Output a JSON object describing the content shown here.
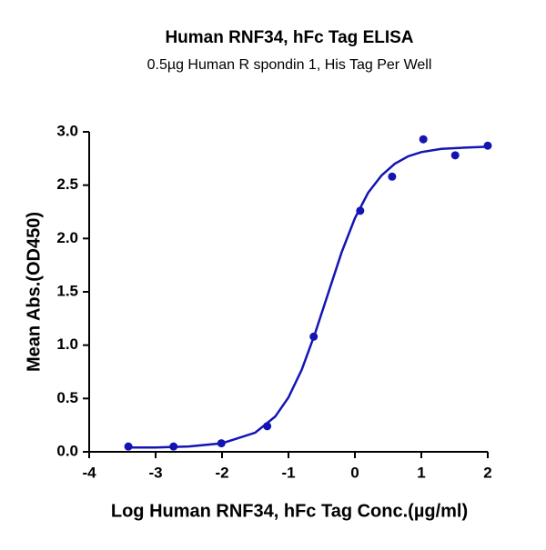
{
  "chart_data": {
    "type": "scatter",
    "title": "Human RNF34, hFc Tag ELISA",
    "subtitle": "0.5µg Human R spondin 1, His Tag Per Well",
    "x_label": "Log Human RNF34, hFc Tag Conc.(µg/ml)",
    "y_label": "Mean Abs.(OD450)",
    "series": [
      {
        "type": "scatter",
        "color": "#1414b4",
        "x": [
          -3.41,
          -2.73,
          -2.01,
          -1.32,
          -0.62,
          0.08,
          0.56,
          1.03,
          1.51,
          2.0
        ],
        "values": [
          0.05,
          0.05,
          0.08,
          0.24,
          1.08,
          2.26,
          2.58,
          2.93,
          2.78,
          2.87
        ]
      },
      {
        "type": "line",
        "color": "#1414b4",
        "x": [
          -3.4,
          -3,
          -2.5,
          -2,
          -1.5,
          -1.2,
          -1,
          -0.8,
          -0.6,
          -0.4,
          -0.2,
          0,
          0.2,
          0.4,
          0.6,
          0.8,
          1,
          1.3,
          1.6,
          2
        ],
        "values": [
          0.04,
          0.04,
          0.05,
          0.08,
          0.18,
          0.33,
          0.51,
          0.77,
          1.11,
          1.49,
          1.87,
          2.19,
          2.43,
          2.59,
          2.7,
          2.77,
          2.81,
          2.84,
          2.85,
          2.86
        ]
      }
    ],
    "xlim": [
      -4,
      2
    ],
    "xticks": [
      -4,
      -3,
      -2,
      -1,
      0,
      1,
      2
    ],
    "ylim": [
      0,
      3
    ],
    "yticks": [
      {
        "value": 0,
        "label": "0.0"
      },
      0.5,
      {
        "value": 1,
        "label": "1.0"
      },
      1.5,
      {
        "value": 2,
        "label": "2.0"
      },
      2.5,
      {
        "value": 3,
        "label": "3.0"
      }
    ],
    "grid": false
  }
}
